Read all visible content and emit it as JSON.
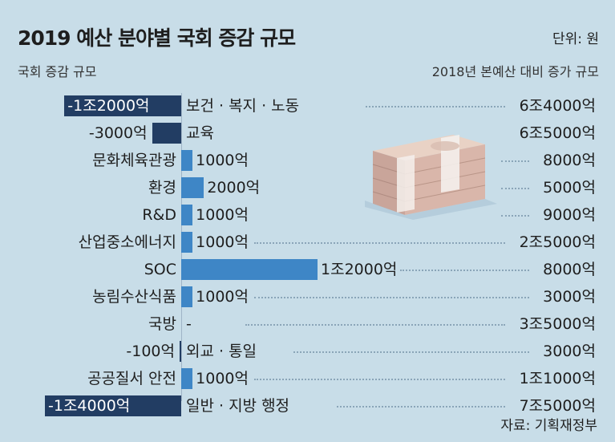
{
  "title": "2019 예산 분야별 국회 증감 규모",
  "unit": "단위: 원",
  "left_subtitle": "국회 증감 규모",
  "right_subtitle": "2018년 본예산 대비 증가 규모",
  "source": "자료: 기획재정부",
  "colors": {
    "background": "#c8dde8",
    "negative_bar": "#223d63",
    "positive_bar": "#3e86c6"
  },
  "chart_data": {
    "type": "bar",
    "orientation": "horizontal",
    "unit": "억원",
    "categories": [
      "보건·복지·노동",
      "교육",
      "문화체육관광",
      "환경",
      "R&D",
      "산업중소에너지",
      "SOC",
      "농림수산식품",
      "국방",
      "외교·통일",
      "공공질서 안전",
      "일반·지방 행정"
    ],
    "category_labels": [
      "보건 · 복지 · 노동",
      "교육",
      "문화체육관광",
      "환경",
      "R&D",
      "산업중소에너지",
      "SOC",
      "농림수산식품",
      "국방",
      "외교 · 통일",
      "공공질서 안전",
      "일반 · 지방 행정"
    ],
    "values": [
      -12000,
      -3000,
      1000,
      2000,
      1000,
      1000,
      12000,
      1000,
      0,
      -100,
      1000,
      -14000
    ],
    "value_labels": [
      "-1조2000억",
      "-3000억",
      "1000억",
      "2000억",
      "1000억",
      "1000억",
      "1조2000억",
      "1000억",
      "-",
      "-100억",
      "1000억",
      "-1조4000억"
    ],
    "totals": [
      "6조4000억",
      "6조5000억",
      "8000억",
      "5000억",
      "9000억",
      "2조5000억",
      "8000억",
      "3000억",
      "3조5000억",
      "3000억",
      "1조1000억",
      "7조5000억"
    ]
  }
}
